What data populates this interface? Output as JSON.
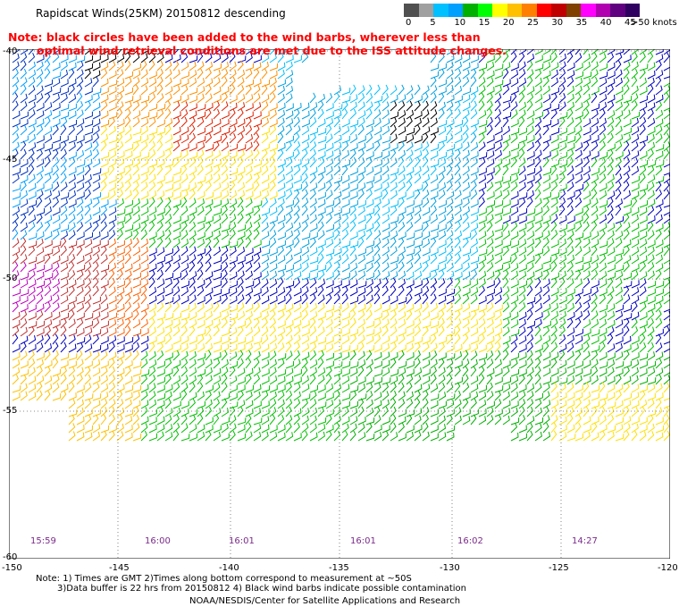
{
  "header": {
    "title": "Rapidscat Winds(25KM) 20150812 descending"
  },
  "note": {
    "line1": "Note: black circles have been added to the wind barbs, wherever less than",
    "line2": "optimal wind retrieval conditions are met due to the ISS attitude changes."
  },
  "color_scale": {
    "unit_label": ">50 knots",
    "ticks": [
      "0",
      "5",
      "10",
      "15",
      "20",
      "25",
      "30",
      "35",
      "40",
      "45"
    ],
    "colors": [
      "#505050",
      "#a0a0a0",
      "#00c0ff",
      "#00a0ff",
      "#00b000",
      "#00ff00",
      "#ffff00",
      "#ffc000",
      "#ff8000",
      "#ff0000",
      "#c00000",
      "#804000",
      "#ff00ff",
      "#b000b0",
      "#600080",
      "#300060"
    ]
  },
  "map": {
    "lat_labels": [
      "-40",
      "-45",
      "-50",
      "-55",
      "-60"
    ],
    "lon_labels": [
      "-150",
      "-145",
      "-140",
      "-135",
      "-130",
      "-125",
      "-120"
    ],
    "time_labels": [
      "15:59",
      "16:00",
      "16:01",
      "16:01",
      "16:02",
      "14:27"
    ]
  },
  "footer": {
    "line1": "Note: 1) Times are GMT 2)Times along bottom correspond to measurement at ~50S",
    "line2": "3)Data buffer is 22 hrs from 20150812 4) Black wind barbs indicate possible contamination",
    "credit": "NOAA/NESDIS/Center for Satellite Applications and Research"
  }
}
